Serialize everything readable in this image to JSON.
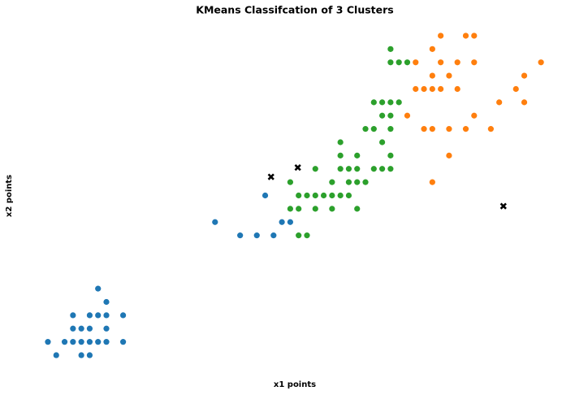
{
  "chart_data": {
    "type": "scatter",
    "title": "KMeans Classifcation of 3 Clusters",
    "x_label": "x1 points",
    "y_label": "x2 points",
    "xlim": [
      0.7,
      7.2
    ],
    "ylim": [
      0,
      2.6
    ],
    "axis_visible": false,
    "series": [
      {
        "color": "#1f77b4",
        "marker": "circle",
        "x": [
          1.6,
          1.7,
          1.3,
          1.5,
          1.6,
          1.7,
          1.9,
          1.3,
          1.4,
          1.5,
          1.7,
          1.0,
          1.2,
          1.3,
          1.4,
          1.5,
          1.6,
          1.7,
          1.9,
          1.1,
          1.4,
          1.5,
          3.0,
          3.3,
          3.5,
          3.7,
          3.8,
          3.9,
          3.6
        ],
        "y": [
          0.6,
          0.5,
          0.4,
          0.4,
          0.4,
          0.4,
          0.4,
          0.3,
          0.3,
          0.3,
          0.3,
          0.2,
          0.2,
          0.2,
          0.2,
          0.2,
          0.2,
          0.2,
          0.2,
          0.1,
          0.1,
          0.1,
          1.1,
          1.0,
          1.0,
          1.0,
          1.1,
          1.1,
          1.3
        ]
      },
      {
        "color": "#ff7f0e",
        "marker": "circle",
        "x": [
          5.7,
          6.0,
          6.1,
          5.6,
          5.4,
          5.7,
          5.9,
          6.1,
          6.9,
          5.6,
          5.8,
          6.7,
          5.4,
          5.5,
          5.6,
          5.7,
          5.9,
          6.6,
          6.4,
          6.7,
          5.3,
          6.1,
          5.5,
          5.6,
          5.8,
          6.0,
          6.3,
          5.8,
          5.6
        ],
        "y": [
          2.5,
          2.5,
          2.5,
          2.4,
          2.3,
          2.3,
          2.3,
          2.3,
          2.3,
          2.2,
          2.2,
          2.2,
          2.1,
          2.1,
          2.1,
          2.1,
          2.1,
          2.1,
          2.0,
          2.0,
          1.9,
          1.9,
          1.8,
          1.8,
          1.8,
          1.8,
          1.8,
          1.6,
          1.4
        ]
      },
      {
        "color": "#2ca02c",
        "marker": "circle",
        "x": [
          4.0,
          4.1,
          3.9,
          4.0,
          4.2,
          4.4,
          4.7,
          4.0,
          4.1,
          4.2,
          4.3,
          4.4,
          4.5,
          4.6,
          3.9,
          4.4,
          4.6,
          4.7,
          4.8,
          4.2,
          4.5,
          4.6,
          4.7,
          4.9,
          5.0,
          5.1,
          4.5,
          4.7,
          5.1,
          4.5,
          5.0,
          4.8,
          4.9,
          5.1,
          5.0,
          5.1,
          4.9,
          5.0,
          5.1,
          5.2,
          5.1,
          5.2,
          5.3,
          5.1
        ],
        "y": [
          1.0,
          1.0,
          1.2,
          1.2,
          1.2,
          1.2,
          1.2,
          1.3,
          1.3,
          1.3,
          1.3,
          1.3,
          1.3,
          1.3,
          1.4,
          1.4,
          1.4,
          1.4,
          1.4,
          1.5,
          1.5,
          1.5,
          1.5,
          1.5,
          1.5,
          1.5,
          1.6,
          1.6,
          1.6,
          1.7,
          1.7,
          1.8,
          1.8,
          1.8,
          1.9,
          1.9,
          2.0,
          2.0,
          2.0,
          2.0,
          2.3,
          2.3,
          2.3,
          2.4
        ]
      },
      {
        "color": "#000000",
        "marker": "x",
        "x": [
          3.67,
          3.99,
          6.45
        ],
        "y": [
          1.44,
          1.51,
          1.22
        ]
      }
    ]
  }
}
